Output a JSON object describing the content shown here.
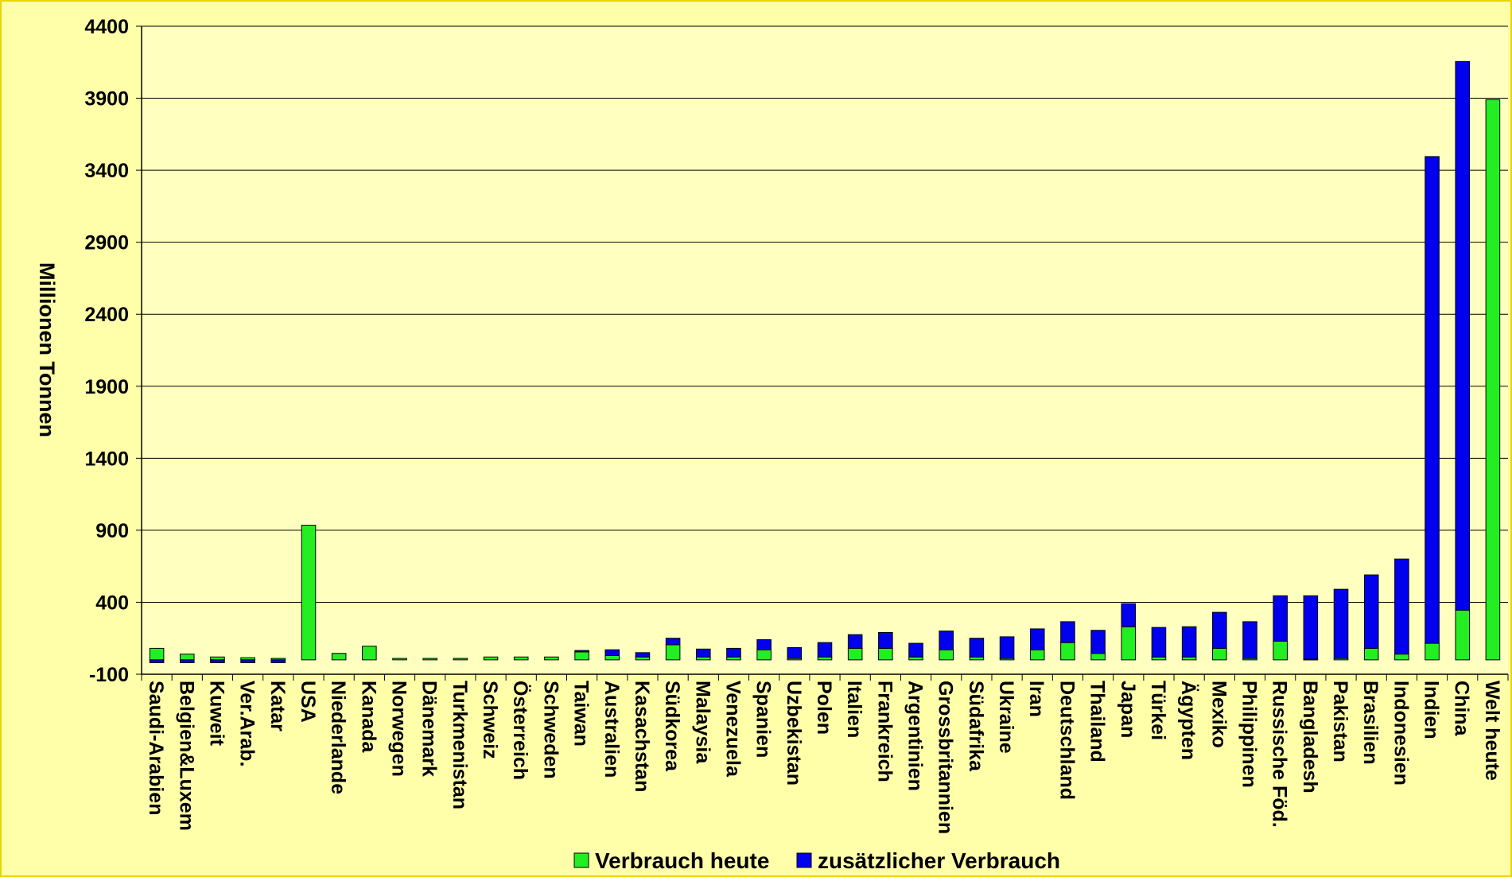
{
  "chart_data": {
    "type": "bar",
    "stacked": true,
    "title": "",
    "xlabel": "",
    "ylabel": "Millionen Tonnen",
    "ylim": [
      -100,
      4400
    ],
    "yticks": [
      -100,
      400,
      900,
      1400,
      1900,
      2400,
      2900,
      3400,
      3900,
      4400
    ],
    "grid": true,
    "legend_position": "bottom",
    "categories": [
      "Saudi-Arabien",
      "Belgien&Luxem",
      "Kuweit",
      "Ver.Arab.",
      "Katar",
      "USA",
      "Niederlande",
      "Kanada",
      "Norwegen",
      "Dänemark",
      "Turkmenistan",
      "Schweiz",
      "Österreich",
      "Schweden",
      "Taiwan",
      "Australien",
      "Kasachstan",
      "Südkorea",
      "Malaysia",
      "Venezuela",
      "Spanien",
      "Uzbekistan",
      "Polen",
      "Italien",
      "Frankreich",
      "Argentinien",
      "Grossbritannien",
      "Südafrika",
      "Ukraine",
      "Iran",
      "Deutschland",
      "Thailand",
      "Japan",
      "Türkei",
      "Ägypten",
      "Mexiko",
      "Philippinen",
      "Russische Föd.",
      "Bangladesh",
      "Pakistan",
      "Brasilien",
      "Indonesien",
      "Indien",
      "China",
      "Welt heute"
    ],
    "series": [
      {
        "name": "Verbrauch heute",
        "color": "#22ee22",
        "values": [
          80,
          40,
          20,
          15,
          10,
          935,
          45,
          95,
          10,
          10,
          10,
          20,
          20,
          20,
          55,
          30,
          20,
          105,
          20,
          20,
          70,
          10,
          20,
          80,
          80,
          20,
          70,
          20,
          10,
          70,
          120,
          45,
          230,
          20,
          20,
          80,
          10,
          130,
          5,
          10,
          80,
          40,
          115,
          345,
          3890
        ]
      },
      {
        "name": "zusätzlicher Verbrauch",
        "color": "#0000ee",
        "values": [
          -20,
          -20,
          -20,
          -20,
          -20,
          0,
          0,
          0,
          0,
          0,
          0,
          0,
          0,
          0,
          10,
          40,
          30,
          45,
          55,
          60,
          70,
          75,
          100,
          95,
          110,
          95,
          130,
          130,
          150,
          145,
          145,
          160,
          160,
          205,
          210,
          250,
          255,
          315,
          440,
          480,
          510,
          660,
          3380,
          3810,
          0
        ]
      }
    ]
  },
  "legend": {
    "items": [
      {
        "label": "Verbrauch heute",
        "color": "#22ee22"
      },
      {
        "label": "zusätzlicher Verbrauch",
        "color": "#0000ee"
      }
    ]
  }
}
